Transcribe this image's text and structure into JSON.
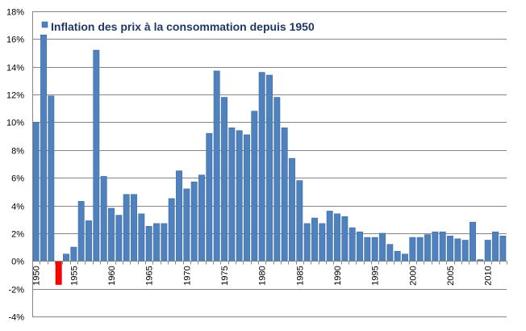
{
  "chart_data": {
    "type": "bar",
    "title": "",
    "xlabel": "",
    "ylabel": "",
    "ylim": [
      -0.04,
      0.18
    ],
    "ytick_step": 0.02,
    "ytick_labels": [
      "-4%",
      "-2%",
      "0%",
      "2%",
      "4%",
      "6%",
      "8%",
      "10%",
      "12%",
      "14%",
      "16%",
      "18%"
    ],
    "xtick_labels": [
      "1950",
      "1955",
      "1960",
      "1965",
      "1970",
      "1975",
      "1980",
      "1985",
      "1990",
      "1995",
      "2000",
      "2005",
      "2010"
    ],
    "grid": true,
    "legend_position": "top-left",
    "series": [
      {
        "name": "Inflation des prix à la consommation depuis 1950",
        "color": "#4f81bd",
        "negative_color": "#ff0000",
        "categories": [
          1950,
          1951,
          1952,
          1953,
          1954,
          1955,
          1956,
          1957,
          1958,
          1959,
          1960,
          1961,
          1962,
          1963,
          1964,
          1965,
          1966,
          1967,
          1968,
          1969,
          1970,
          1971,
          1972,
          1973,
          1974,
          1975,
          1976,
          1977,
          1978,
          1979,
          1980,
          1981,
          1982,
          1983,
          1984,
          1985,
          1986,
          1987,
          1988,
          1989,
          1990,
          1991,
          1992,
          1993,
          1994,
          1995,
          1996,
          1997,
          1998,
          1999,
          2000,
          2001,
          2002,
          2003,
          2004,
          2005,
          2006,
          2007,
          2008,
          2009,
          2010,
          2011,
          2012
        ],
        "values": [
          0.1,
          0.163,
          0.119,
          -0.017,
          0.005,
          0.01,
          0.043,
          0.029,
          0.152,
          0.061,
          0.038,
          0.033,
          0.048,
          0.048,
          0.034,
          0.025,
          0.027,
          0.027,
          0.045,
          0.065,
          0.052,
          0.057,
          0.062,
          0.092,
          0.137,
          0.118,
          0.096,
          0.094,
          0.091,
          0.108,
          0.136,
          0.134,
          0.118,
          0.096,
          0.074,
          0.058,
          0.027,
          0.031,
          0.027,
          0.036,
          0.034,
          0.032,
          0.024,
          0.021,
          0.017,
          0.017,
          0.02,
          0.012,
          0.007,
          0.005,
          0.017,
          0.017,
          0.019,
          0.021,
          0.021,
          0.018,
          0.016,
          0.015,
          0.028,
          0.001,
          0.015,
          0.021,
          0.018
        ]
      }
    ]
  }
}
